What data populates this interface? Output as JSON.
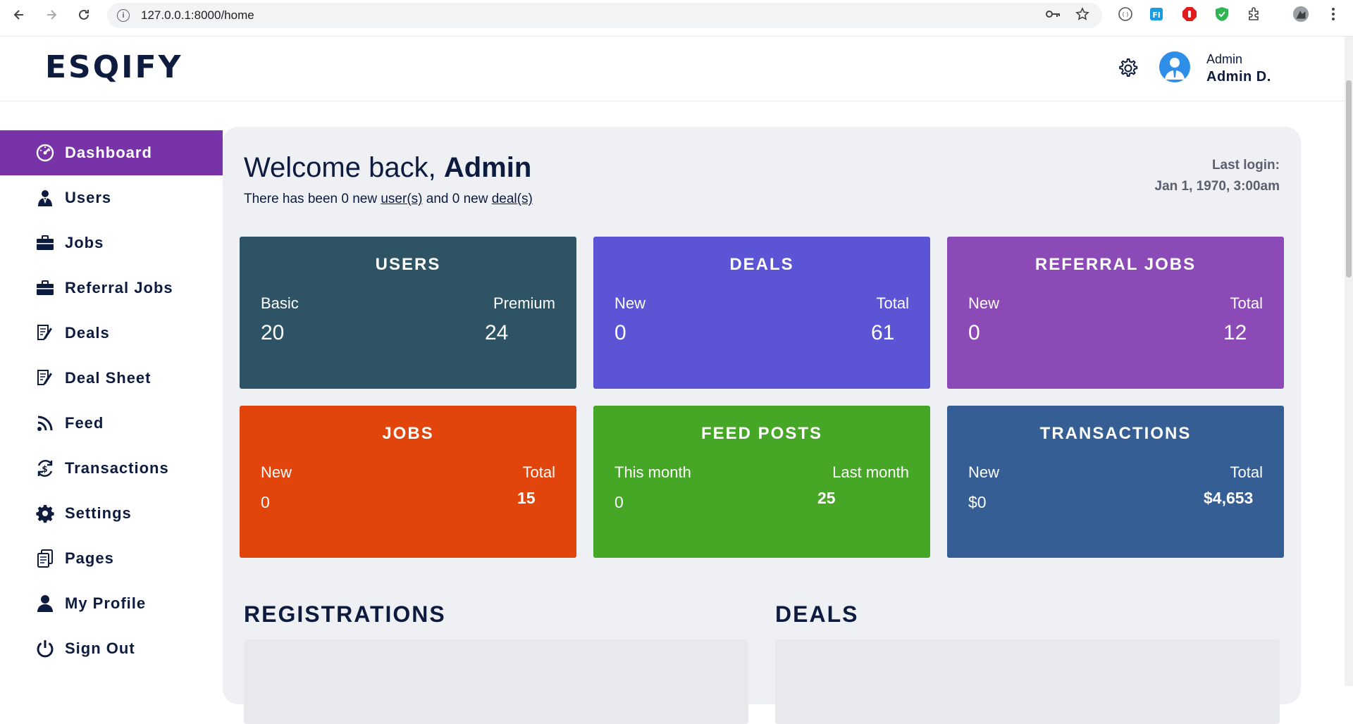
{
  "browser": {
    "url": "127.0.0.1:8000/home"
  },
  "header": {
    "logo": "ESQIFY",
    "user_role": "Admin",
    "user_name": "Admin D."
  },
  "sidebar": {
    "items": [
      {
        "label": "Dashboard",
        "icon": "dashboard-gauge-icon",
        "active": true
      },
      {
        "label": "Users",
        "icon": "users-icon"
      },
      {
        "label": "Jobs",
        "icon": "briefcase-icon"
      },
      {
        "label": "Referral Jobs",
        "icon": "briefcase-icon"
      },
      {
        "label": "Deals",
        "icon": "document-edit-icon"
      },
      {
        "label": "Deal Sheet",
        "icon": "document-edit-icon"
      },
      {
        "label": "Feed",
        "icon": "rss-icon"
      },
      {
        "label": "Transactions",
        "icon": "transactions-icon"
      },
      {
        "label": "Settings",
        "icon": "gear-icon"
      },
      {
        "label": "Pages",
        "icon": "pages-icon"
      },
      {
        "label": "My Profile",
        "icon": "user-icon"
      },
      {
        "label": "Sign Out",
        "icon": "power-icon"
      }
    ],
    "active_color": "#7833a8"
  },
  "welcome": {
    "prefix": "Welcome back, ",
    "name": "Admin",
    "sub_1": "There has been 0 new ",
    "sub_link_users": "user(s)",
    "sub_2": " and 0 new ",
    "sub_link_deals": "deal(s)",
    "last_login_label": "Last login:",
    "last_login_value": "Jan 1, 1970, 3:00am"
  },
  "cards": [
    {
      "title": "USERS",
      "left_label": "Basic",
      "left_value": "20",
      "right_label": "Premium",
      "right_value": "24",
      "color": "#2e5364"
    },
    {
      "title": "DEALS",
      "left_label": "New",
      "left_value": "0",
      "right_label": "Total",
      "right_value": "61",
      "color": "#5b55d5"
    },
    {
      "title": "REFERRAL JOBS",
      "left_label": "New",
      "left_value": "0",
      "right_label": "Total",
      "right_value": "12",
      "color": "#8c4ab6"
    },
    {
      "title": "JOBS",
      "left_label": "New",
      "left_value": "0",
      "right_label": "Total",
      "right_value": "15",
      "color": "#e2450b"
    },
    {
      "title": "FEED POSTS",
      "left_label": "This month",
      "left_value": "0",
      "right_label": "Last month",
      "right_value": "25",
      "color": "#46a625"
    },
    {
      "title": "TRANSACTIONS",
      "left_label": "New",
      "left_value": "$0",
      "right_label": "Total",
      "right_value": "$4,653",
      "color": "#355f94"
    }
  ],
  "sections": {
    "registrations": "REGISTRATIONS",
    "deals": "DEALS"
  }
}
